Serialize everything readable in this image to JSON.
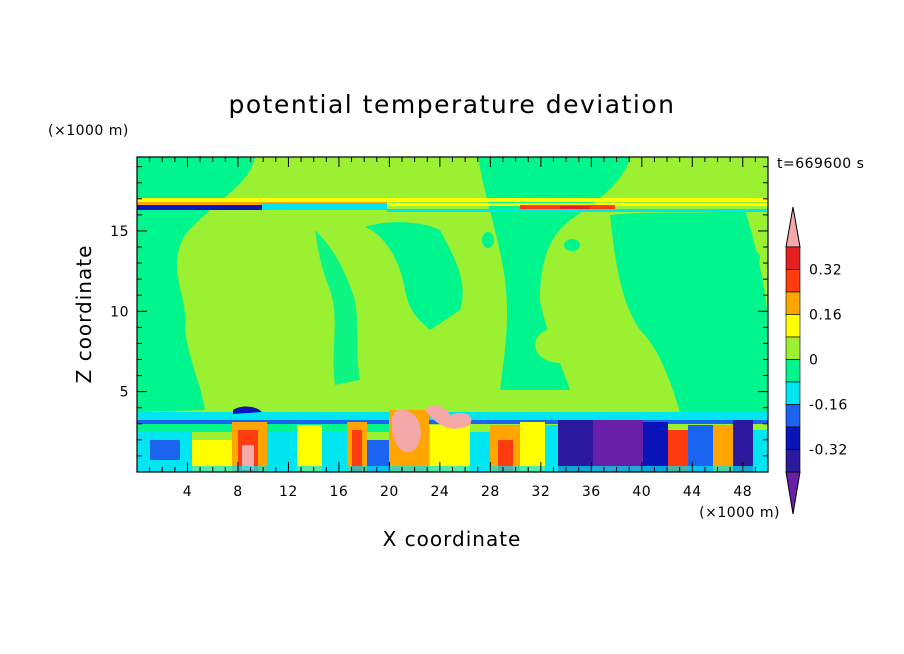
{
  "chart_data": {
    "type": "heatmap",
    "title": "potential temperature deviation",
    "xlabel": "X coordinate",
    "ylabel": "Z coordinate",
    "x_unit": "(×1000 m)",
    "y_unit": "(×1000 m)",
    "time_label": "t=669600 s",
    "xlim": [
      0,
      50
    ],
    "ylim": [
      0,
      19.6
    ],
    "x_ticks": [
      4,
      8,
      12,
      16,
      20,
      24,
      28,
      32,
      36,
      40,
      44,
      48
    ],
    "y_ticks": [
      5,
      10,
      15
    ],
    "colorbar": {
      "levels": [
        -0.4,
        -0.32,
        -0.24,
        -0.16,
        -0.08,
        0,
        0.08,
        0.16,
        0.24,
        0.32,
        0.4
      ],
      "colors": [
        "#6a1fa8",
        "#2b1a9e",
        "#0a14b8",
        "#1a64f0",
        "#00e6f0",
        "#00f58c",
        "#9cf032",
        "#ffff00",
        "#ffa500",
        "#ff3c10",
        "#e62020",
        "#f4a8a8"
      ],
      "tick_labels": [
        "0.32",
        "0.16",
        "0",
        "-0.16",
        "-0.32"
      ],
      "tick_values": [
        0.32,
        0.16,
        0,
        -0.16,
        -0.32
      ]
    },
    "field_regions": [
      {
        "x": [
          0,
          7
        ],
        "z": [
          4,
          19.6
        ],
        "value": 0.04
      },
      {
        "x": [
          7,
          15
        ],
        "z": [
          4,
          19.6
        ],
        "value": 0.1
      },
      {
        "x": [
          15,
          24
        ],
        "z": [
          4,
          14
        ],
        "value": 0.1
      },
      {
        "x": [
          21,
          27
        ],
        "z": [
          7,
          15.5
        ],
        "value": 0.04
      },
      {
        "x": [
          30,
          37
        ],
        "z": [
          4,
          19.6
        ],
        "value": 0.1
      },
      {
        "x": [
          39,
          48
        ],
        "z": [
          4,
          19.6
        ],
        "value": 0.04
      },
      {
        "x": [
          0,
          50
        ],
        "z": [
          16.5,
          17
        ],
        "value": -0.12
      },
      {
        "x": [
          30,
          45
        ],
        "z": [
          16.5,
          16.9
        ],
        "value": 0.3
      },
      {
        "x": [
          0,
          50
        ],
        "z": [
          0,
          3.6
        ],
        "value": -0.02
      },
      {
        "x": [
          7.5,
          10
        ],
        "z": [
          0,
          3.5
        ],
        "value": 0.3
      },
      {
        "x": [
          20.5,
          24
        ],
        "z": [
          1.5,
          3.8
        ],
        "value": 0.42
      },
      {
        "x": [
          34,
          40
        ],
        "z": [
          0,
          3.2
        ],
        "value": -0.36
      },
      {
        "x": [
          40,
          42
        ],
        "z": [
          0,
          3.0
        ],
        "value": -0.28
      }
    ]
  }
}
